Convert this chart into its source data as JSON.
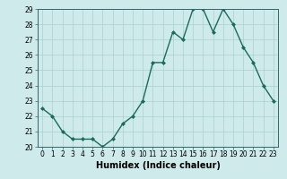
{
  "x": [
    0,
    1,
    2,
    3,
    4,
    5,
    6,
    7,
    8,
    9,
    10,
    11,
    12,
    13,
    14,
    15,
    16,
    17,
    18,
    19,
    20,
    21,
    22,
    23
  ],
  "y": [
    22.5,
    22.0,
    21.0,
    20.5,
    20.5,
    20.5,
    20.0,
    20.5,
    21.5,
    22.0,
    23.0,
    25.5,
    25.5,
    27.5,
    27.0,
    29.0,
    29.0,
    27.5,
    29.0,
    28.0,
    26.5,
    25.5,
    24.0,
    23.0
  ],
  "line_color": "#1a6b5a",
  "marker": "D",
  "marker_size": 2.0,
  "line_width": 1.0,
  "xlabel": "Humidex (Indice chaleur)",
  "xlabel_fontsize": 7,
  "xlim": [
    -0.5,
    23.5
  ],
  "ylim": [
    20,
    29
  ],
  "yticks": [
    20,
    21,
    22,
    23,
    24,
    25,
    26,
    27,
    28,
    29
  ],
  "xticks": [
    0,
    1,
    2,
    3,
    4,
    5,
    6,
    7,
    8,
    9,
    10,
    11,
    12,
    13,
    14,
    15,
    16,
    17,
    18,
    19,
    20,
    21,
    22,
    23
  ],
  "bg_color": "#ceeaea",
  "grid_color": "#aacfcf",
  "tick_fontsize": 5.5
}
